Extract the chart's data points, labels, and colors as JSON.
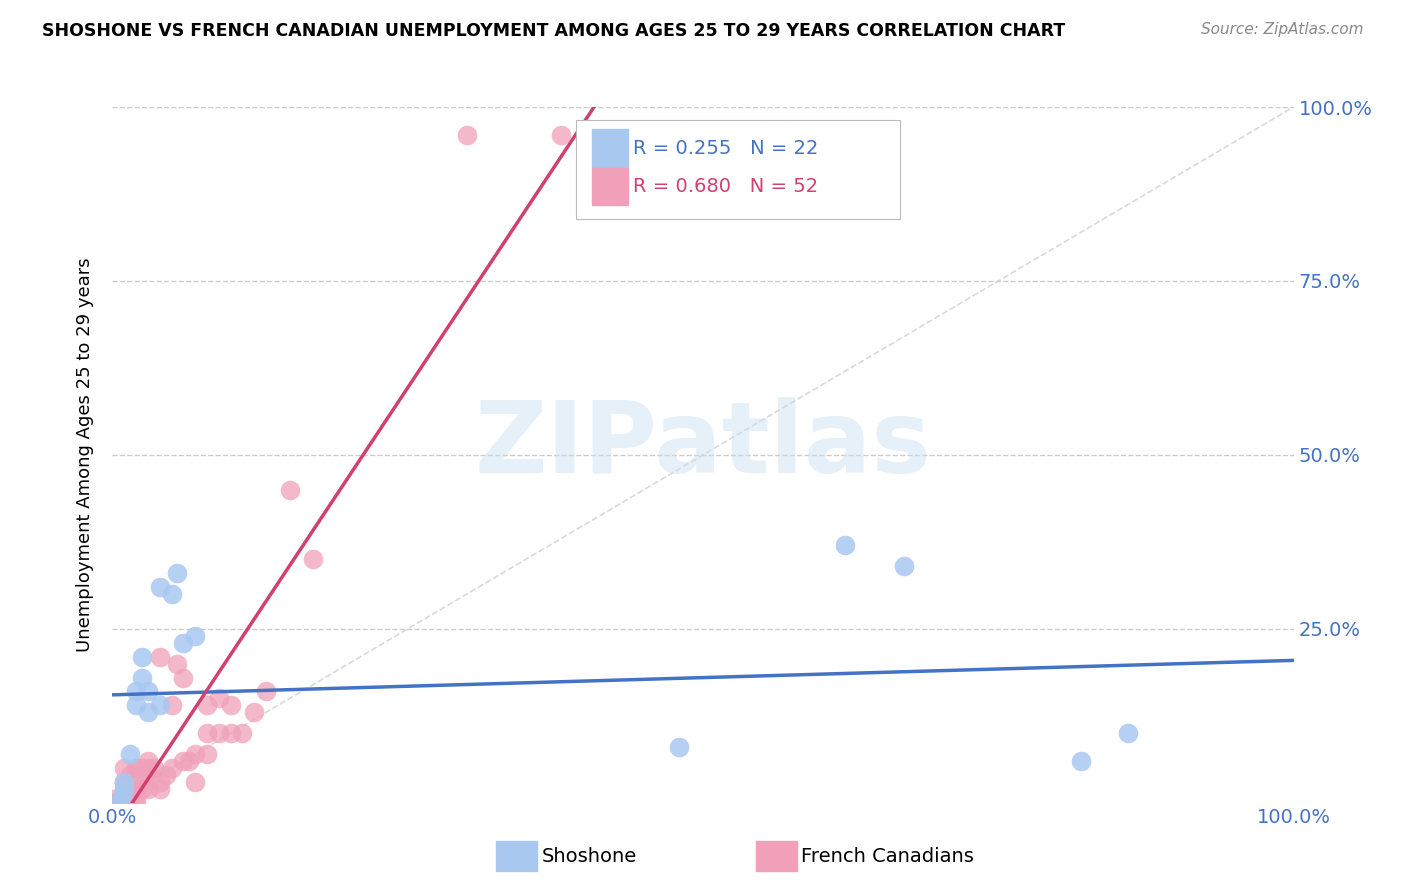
{
  "title": "SHOSHONE VS FRENCH CANADIAN UNEMPLOYMENT AMONG AGES 25 TO 29 YEARS CORRELATION CHART",
  "source": "Source: ZipAtlas.com",
  "ylabel": "Unemployment Among Ages 25 to 29 years",
  "legend1_label": "Shoshone",
  "legend2_label": "French Canadians",
  "R_shoshone": 0.255,
  "N_shoshone": 22,
  "R_french": 0.68,
  "N_french": 52,
  "shoshone_color": "#A8C8F0",
  "french_color": "#F0A0B8",
  "shoshone_line_color": "#4472C4",
  "french_line_color": "#D04070",
  "ref_line_color": "#D0D0D0",
  "shoshone_x": [
    0.005,
    0.008,
    0.01,
    0.01,
    0.015,
    0.02,
    0.02,
    0.025,
    0.025,
    0.03,
    0.03,
    0.04,
    0.04,
    0.05,
    0.055,
    0.06,
    0.07,
    0.48,
    0.62,
    0.67,
    0.82,
    0.86
  ],
  "shoshone_y": [
    0.0,
    0.01,
    0.02,
    0.03,
    0.07,
    0.14,
    0.16,
    0.18,
    0.21,
    0.13,
    0.16,
    0.14,
    0.31,
    0.3,
    0.33,
    0.23,
    0.24,
    0.08,
    0.37,
    0.34,
    0.06,
    0.1
  ],
  "french_x": [
    0.0,
    0.0,
    0.005,
    0.005,
    0.01,
    0.01,
    0.01,
    0.01,
    0.01,
    0.01,
    0.01,
    0.015,
    0.015,
    0.02,
    0.02,
    0.02,
    0.02,
    0.02,
    0.02,
    0.025,
    0.025,
    0.03,
    0.03,
    0.03,
    0.03,
    0.035,
    0.04,
    0.04,
    0.04,
    0.045,
    0.05,
    0.05,
    0.055,
    0.06,
    0.06,
    0.065,
    0.07,
    0.07,
    0.08,
    0.08,
    0.08,
    0.09,
    0.09,
    0.1,
    0.1,
    0.11,
    0.12,
    0.13,
    0.15,
    0.17,
    0.3,
    0.38
  ],
  "french_y": [
    0.0,
    0.005,
    0.0,
    0.0,
    0.0,
    0.005,
    0.01,
    0.01,
    0.02,
    0.03,
    0.05,
    0.01,
    0.04,
    0.0,
    0.01,
    0.02,
    0.02,
    0.03,
    0.05,
    0.02,
    0.05,
    0.02,
    0.04,
    0.05,
    0.06,
    0.05,
    0.02,
    0.03,
    0.21,
    0.04,
    0.05,
    0.14,
    0.2,
    0.06,
    0.18,
    0.06,
    0.03,
    0.07,
    0.07,
    0.1,
    0.14,
    0.1,
    0.15,
    0.1,
    0.14,
    0.1,
    0.13,
    0.16,
    0.45,
    0.35,
    0.96,
    0.96
  ],
  "xlim": [
    0,
    1.0
  ],
  "ylim": [
    0,
    1.0
  ]
}
